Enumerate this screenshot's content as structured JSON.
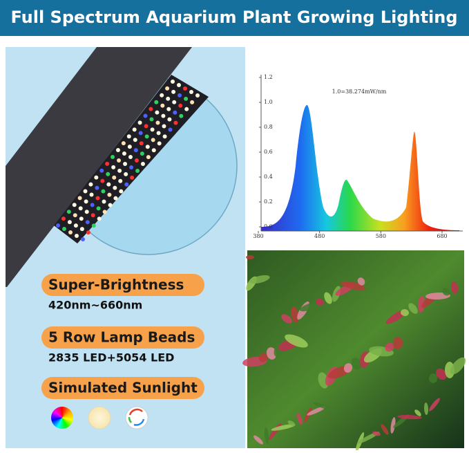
{
  "header": {
    "title": "Full Spectrum Aquarium Plant Growing Lighting"
  },
  "features": [
    {
      "label": "Super-Brightness",
      "detail": "420nm~660nm"
    },
    {
      "label": "5 Row Lamp Beads",
      "detail": "2835 LED+5054 LED"
    },
    {
      "label": "Simulated Sunlight"
    }
  ],
  "spectrum": {
    "annotation": "1.0=38.274mW/nm",
    "xticks": [
      380,
      480,
      580,
      680
    ],
    "yticks": [
      {
        "value": 0,
        "label": "0.0"
      },
      {
        "value": 0.2,
        "label": "0.2"
      },
      {
        "value": 0.4,
        "label": "0.4"
      },
      {
        "value": 0.6,
        "label": "0.6"
      },
      {
        "value": 0.8,
        "label": "0.8"
      },
      {
        "value": 1,
        "label": "1.0"
      },
      {
        "value": 1.2,
        "label": "1.2"
      }
    ]
  }
}
